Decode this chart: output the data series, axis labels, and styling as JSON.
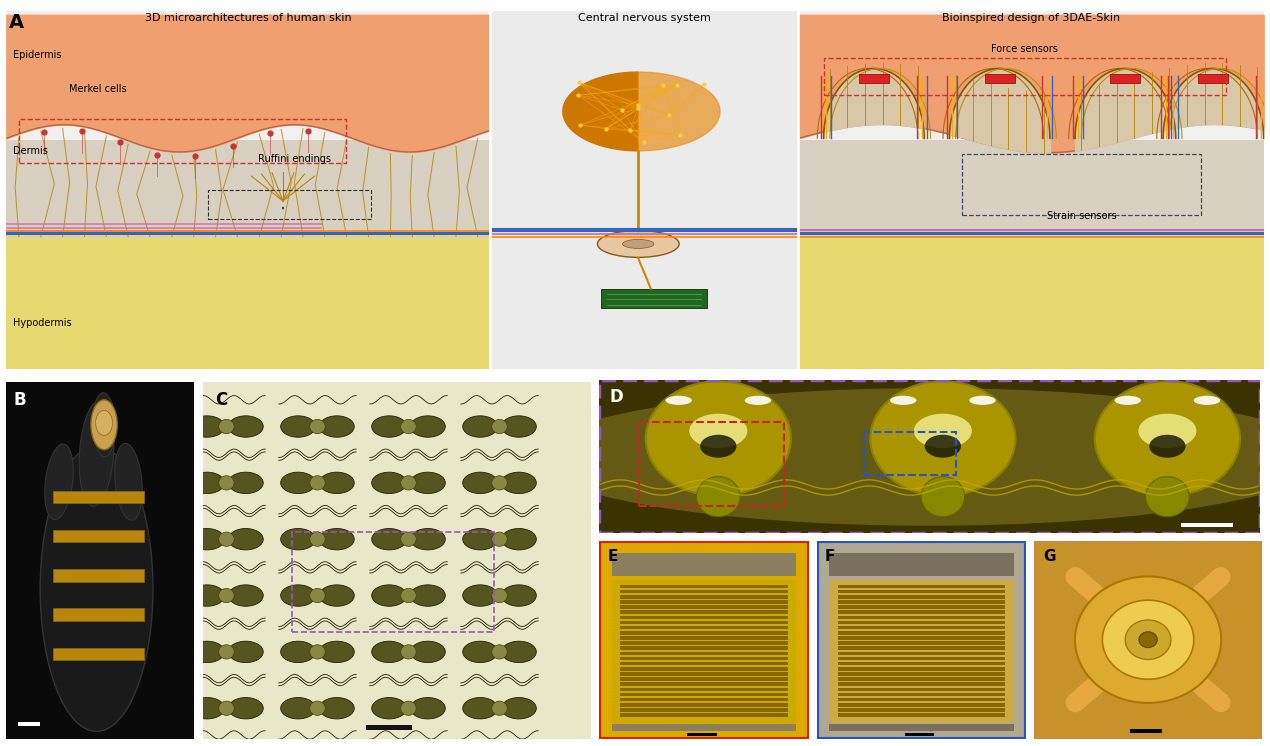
{
  "figure_width": 12.7,
  "figure_height": 7.46,
  "bg_color": "#ffffff",
  "skin_top": "#F0A070",
  "hypo_yellow": "#E8D870",
  "dermis_fill": "#E0D0B0",
  "fiber_color": "#B8860B",
  "nerve_pink": "#CC66AA",
  "nerve_blue": "#3366BB",
  "nerve_yellow": "#CC8800",
  "panel_A_bg": "#F0F0F0",
  "left_title": "3D microarchitectures of human skin",
  "center_title": "Central nervous system",
  "right_title": "Bioinspired design of 3DAE-Skin",
  "label_A": "A",
  "label_B": "B",
  "label_C": "C",
  "label_D": "D",
  "label_E": "E",
  "label_F": "F",
  "label_G": "G",
  "text_epidermis": "Epidermis",
  "text_merkel": "Merkel cells",
  "text_dermis": "Dermis",
  "text_ruffini": "Ruffini endings",
  "text_hypo": "Hypodermis",
  "text_force": "Force sensors",
  "text_strain": "Strain sensors",
  "panel_D_border": "#9955BB",
  "panel_E_border": "#DD2200",
  "panel_F_border": "#2255CC",
  "panel_G_border": "#CC8844",
  "red_box": "#CC2222",
  "blue_box": "#2255CC",
  "purple_box": "#9955BB"
}
